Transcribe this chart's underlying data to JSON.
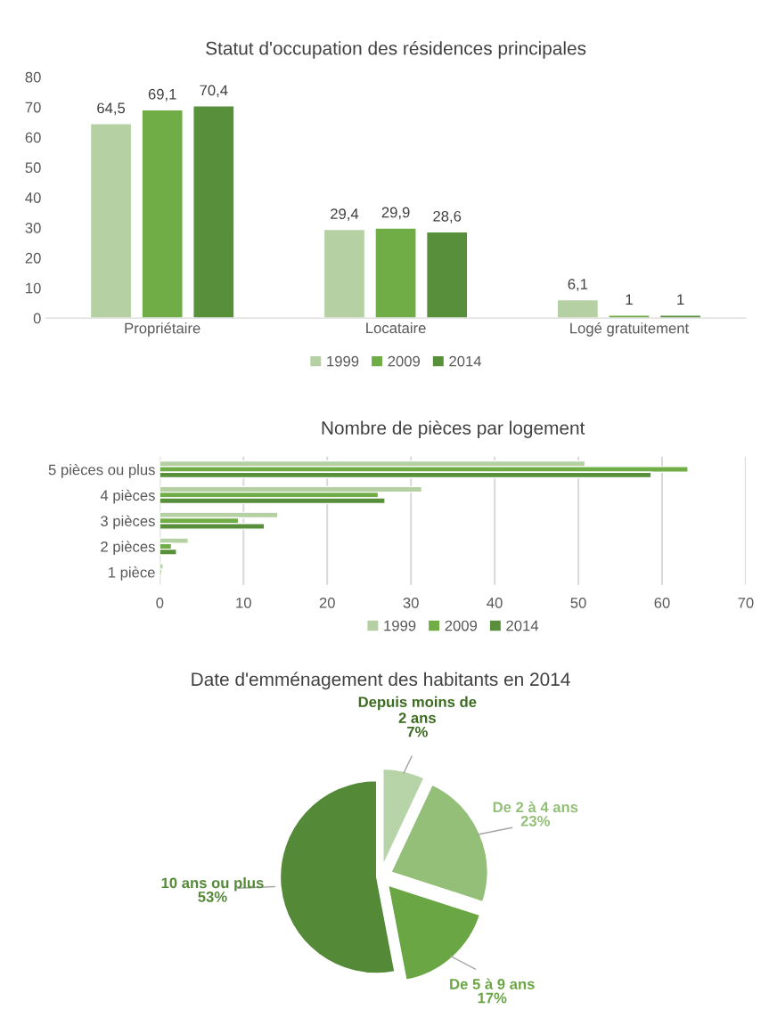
{
  "chart_data": [
    {
      "type": "bar",
      "title": "Statut d'occupation des résidences principales",
      "categories": [
        "Propriétaire",
        "Locataire",
        "Logé gratuitement"
      ],
      "series": [
        {
          "name": "1999",
          "color": "#b5d1a3",
          "values": [
            64.5,
            29.4,
            6.1
          ]
        },
        {
          "name": "2009",
          "color": "#70ad47",
          "values": [
            69.1,
            29.9,
            1
          ]
        },
        {
          "name": "2014",
          "color": "#588f3a",
          "values": [
            70.4,
            28.6,
            1
          ]
        }
      ],
      "value_labels": [
        [
          "64,5",
          "29,4",
          "6,1"
        ],
        [
          "69,1",
          "29,9",
          "1"
        ],
        [
          "70,4",
          "28,6",
          "1"
        ]
      ],
      "ylim": [
        0,
        80
      ],
      "yticks": [
        0,
        10,
        20,
        30,
        40,
        50,
        60,
        70,
        80
      ],
      "grid": false,
      "legend": "bottom"
    },
    {
      "type": "bar",
      "orientation": "horizontal",
      "title": "Nombre de pièces par logement",
      "categories": [
        "5 pièces ou plus",
        "4 pièces",
        "3 pièces",
        "2 pièces",
        "1 pièce"
      ],
      "series": [
        {
          "name": "1999",
          "color": "#b5d1a3",
          "values": [
            50.8,
            31.3,
            14.1,
            3.4,
            0.4
          ]
        },
        {
          "name": "2009",
          "color": "#70ad47",
          "values": [
            63.1,
            26.1,
            9.4,
            1.4,
            0.2
          ]
        },
        {
          "name": "2014",
          "color": "#588f3a",
          "values": [
            58.7,
            26.9,
            12.5,
            2.0,
            null
          ]
        }
      ],
      "xlim": [
        0,
        70
      ],
      "xticks": [
        0,
        10,
        20,
        30,
        40,
        50,
        60,
        70
      ],
      "grid": "x",
      "legend": "bottom"
    },
    {
      "type": "pie",
      "title": "Date d'emménagement des habitants en 2014",
      "categories": [
        "Depuis moins de\n2 ans",
        "De 2 à 4 ans",
        "De 5 à 9 ans",
        "10 ans ou plus"
      ],
      "values": [
        7,
        23,
        17,
        53
      ],
      "value_labels": [
        "7%",
        "23%",
        "17%",
        "53%"
      ],
      "colors": [
        "#b7d4a8",
        "#93bf78",
        "#6aa644",
        "#548a37"
      ],
      "legend": false
    }
  ]
}
